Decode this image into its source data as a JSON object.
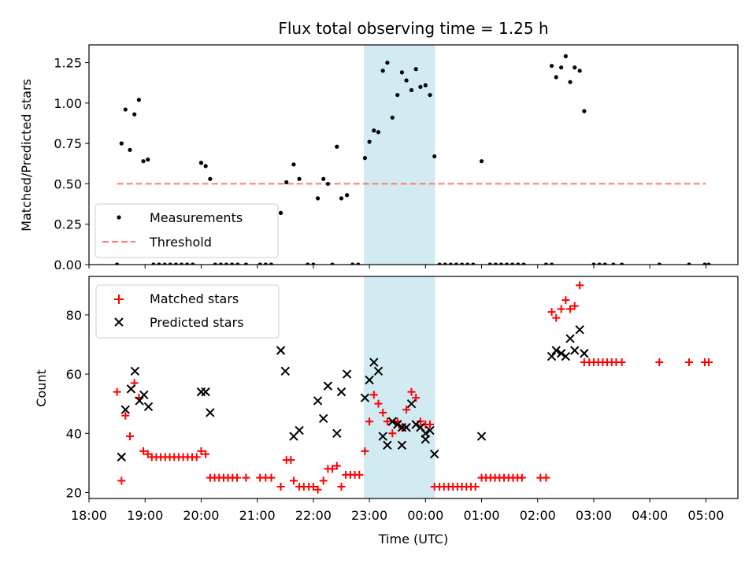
{
  "title": "Flux total observing time = 1.25 h",
  "colors": {
    "measurement": "#000000",
    "threshold": "#ff7777",
    "matched": "#ff0000",
    "predicted": "#000000",
    "span": "#add8e6"
  },
  "chart_data": [
    {
      "type": "scatter",
      "ylabel": "Matched/Predicted stars",
      "ylim": [
        0,
        1.36
      ],
      "yticks": [
        0,
        0.25,
        0.5,
        0.75,
        1.0,
        1.25
      ],
      "ytick_labels": [
        "0.00",
        "0.25",
        "0.50",
        "0.75",
        "1.00",
        "1.25"
      ],
      "legend": {
        "position": "lower-left",
        "entries": [
          "Measurements",
          "Threshold"
        ]
      },
      "threshold": {
        "value": 0.5,
        "x_start": 18.5,
        "x_end": 29.0
      },
      "shaded_span": [
        22.9,
        24.17
      ],
      "series": [
        {
          "name": "Measurements",
          "points": [
            [
              18.5,
              0.0
            ],
            [
              18.58,
              0.75
            ],
            [
              18.65,
              0.96
            ],
            [
              18.73,
              0.71
            ],
            [
              18.81,
              0.93
            ],
            [
              18.89,
              1.02
            ],
            [
              18.97,
              0.64
            ],
            [
              19.05,
              0.65
            ],
            [
              19.15,
              0.0
            ],
            [
              19.25,
              0.0
            ],
            [
              19.35,
              0.0
            ],
            [
              19.45,
              0.0
            ],
            [
              19.55,
              0.0
            ],
            [
              19.65,
              0.0
            ],
            [
              19.75,
              0.0
            ],
            [
              19.85,
              0.0
            ],
            [
              20.0,
              0.63
            ],
            [
              20.08,
              0.61
            ],
            [
              20.16,
              0.53
            ],
            [
              20.25,
              0.0
            ],
            [
              20.35,
              0.0
            ],
            [
              20.45,
              0.0
            ],
            [
              20.55,
              0.0
            ],
            [
              20.65,
              0.0
            ],
            [
              20.8,
              0.0
            ],
            [
              21.05,
              0.0
            ],
            [
              21.15,
              0.0
            ],
            [
              21.25,
              0.0
            ],
            [
              21.42,
              0.32
            ],
            [
              21.52,
              0.51
            ],
            [
              21.65,
              0.62
            ],
            [
              21.75,
              0.53
            ],
            [
              21.9,
              0.0
            ],
            [
              22.0,
              0.0
            ],
            [
              22.08,
              0.41
            ],
            [
              22.18,
              0.53
            ],
            [
              22.26,
              0.5
            ],
            [
              22.34,
              0.0
            ],
            [
              22.42,
              0.73
            ],
            [
              22.5,
              0.41
            ],
            [
              22.6,
              0.43
            ],
            [
              22.7,
              0.0
            ],
            [
              22.8,
              0.0
            ],
            [
              22.92,
              0.66
            ],
            [
              23.0,
              0.76
            ],
            [
              23.08,
              0.83
            ],
            [
              23.16,
              0.82
            ],
            [
              23.24,
              1.2
            ],
            [
              23.32,
              1.25
            ],
            [
              23.41,
              0.91
            ],
            [
              23.5,
              1.05
            ],
            [
              23.58,
              1.19
            ],
            [
              23.66,
              1.14
            ],
            [
              23.75,
              1.08
            ],
            [
              23.83,
              1.21
            ],
            [
              23.91,
              1.1
            ],
            [
              24.0,
              1.11
            ],
            [
              24.08,
              1.05
            ],
            [
              24.16,
              0.67
            ],
            [
              24.25,
              0.0
            ],
            [
              24.35,
              0.0
            ],
            [
              24.45,
              0.0
            ],
            [
              24.55,
              0.0
            ],
            [
              24.65,
              0.0
            ],
            [
              24.75,
              0.0
            ],
            [
              24.85,
              0.0
            ],
            [
              25.0,
              0.64
            ],
            [
              25.15,
              0.0
            ],
            [
              25.25,
              0.0
            ],
            [
              25.35,
              0.0
            ],
            [
              25.45,
              0.0
            ],
            [
              25.55,
              0.0
            ],
            [
              25.65,
              0.0
            ],
            [
              25.75,
              0.0
            ],
            [
              26.15,
              0.0
            ],
            [
              26.25,
              0.0
            ],
            [
              26.25,
              1.23
            ],
            [
              26.33,
              1.16
            ],
            [
              26.42,
              1.22
            ],
            [
              26.5,
              1.29
            ],
            [
              26.58,
              1.13
            ],
            [
              26.66,
              1.22
            ],
            [
              26.75,
              1.2
            ],
            [
              26.83,
              0.95
            ],
            [
              27.0,
              0.0
            ],
            [
              27.1,
              0.0
            ],
            [
              27.2,
              0.0
            ],
            [
              27.35,
              0.0
            ],
            [
              27.5,
              0.0
            ],
            [
              28.17,
              0.0
            ],
            [
              28.7,
              0.0
            ],
            [
              28.98,
              0.0
            ],
            [
              29.05,
              0.0
            ]
          ]
        }
      ]
    },
    {
      "type": "scatter",
      "xlabel": "Time (UTC)",
      "ylabel": "Count",
      "ylim": [
        18.0,
        93.0
      ],
      "yticks": [
        20,
        40,
        60,
        80
      ],
      "ytick_labels": [
        "20",
        "40",
        "60",
        "80"
      ],
      "xlim": [
        18.0,
        29.57
      ],
      "xticks": [
        18,
        19,
        20,
        21,
        22,
        23,
        24,
        25,
        26,
        27,
        28,
        29
      ],
      "xtick_labels": [
        "18:00",
        "19:00",
        "20:00",
        "21:00",
        "22:00",
        "23:00",
        "00:00",
        "01:00",
        "02:00",
        "03:00",
        "04:00",
        "05:00"
      ],
      "legend": {
        "position": "upper-left",
        "entries": [
          "Matched stars",
          "Predicted stars"
        ]
      },
      "shaded_span": [
        22.9,
        24.17
      ],
      "series": [
        {
          "name": "Matched stars",
          "marker": "plus",
          "points": [
            [
              18.5,
              54
            ],
            [
              18.58,
              24
            ],
            [
              18.65,
              46
            ],
            [
              18.73,
              39
            ],
            [
              18.81,
              57
            ],
            [
              18.89,
              52
            ],
            [
              18.97,
              34
            ],
            [
              19.05,
              33
            ],
            [
              19.12,
              32
            ],
            [
              19.2,
              32
            ],
            [
              19.28,
              32
            ],
            [
              19.36,
              32
            ],
            [
              19.44,
              32
            ],
            [
              19.52,
              32
            ],
            [
              19.6,
              32
            ],
            [
              19.68,
              32
            ],
            [
              19.76,
              32
            ],
            [
              19.84,
              32
            ],
            [
              19.92,
              32
            ],
            [
              20.0,
              34
            ],
            [
              20.08,
              33
            ],
            [
              20.16,
              25
            ],
            [
              20.24,
              25
            ],
            [
              20.32,
              25
            ],
            [
              20.4,
              25
            ],
            [
              20.48,
              25
            ],
            [
              20.56,
              25
            ],
            [
              20.64,
              25
            ],
            [
              20.8,
              25
            ],
            [
              21.05,
              25
            ],
            [
              21.15,
              25
            ],
            [
              21.25,
              25
            ],
            [
              21.42,
              22
            ],
            [
              21.52,
              31
            ],
            [
              21.6,
              31
            ],
            [
              21.65,
              24
            ],
            [
              21.75,
              22
            ],
            [
              21.83,
              22
            ],
            [
              21.92,
              22
            ],
            [
              22.0,
              22
            ],
            [
              22.08,
              21
            ],
            [
              22.18,
              24
            ],
            [
              22.26,
              28
            ],
            [
              22.34,
              28
            ],
            [
              22.42,
              29
            ],
            [
              22.5,
              22
            ],
            [
              22.58,
              26
            ],
            [
              22.66,
              26
            ],
            [
              22.74,
              26
            ],
            [
              22.82,
              26
            ],
            [
              22.92,
              34
            ],
            [
              23.0,
              44
            ],
            [
              23.08,
              53
            ],
            [
              23.16,
              50
            ],
            [
              23.24,
              47
            ],
            [
              23.32,
              44
            ],
            [
              23.41,
              40
            ],
            [
              23.5,
              44
            ],
            [
              23.58,
              42
            ],
            [
              23.66,
              48
            ],
            [
              23.75,
              54
            ],
            [
              23.83,
              52
            ],
            [
              23.91,
              44
            ],
            [
              24.0,
              43
            ],
            [
              24.08,
              43
            ],
            [
              24.16,
              22
            ],
            [
              24.25,
              22
            ],
            [
              24.33,
              22
            ],
            [
              24.41,
              22
            ],
            [
              24.49,
              22
            ],
            [
              24.57,
              22
            ],
            [
              24.65,
              22
            ],
            [
              24.73,
              22
            ],
            [
              24.81,
              22
            ],
            [
              24.89,
              22
            ],
            [
              25.0,
              25
            ],
            [
              25.08,
              25
            ],
            [
              25.16,
              25
            ],
            [
              25.24,
              25
            ],
            [
              25.32,
              25
            ],
            [
              25.4,
              25
            ],
            [
              25.48,
              25
            ],
            [
              25.56,
              25
            ],
            [
              25.64,
              25
            ],
            [
              25.72,
              25
            ],
            [
              26.05,
              25
            ],
            [
              26.15,
              25
            ],
            [
              26.25,
              81
            ],
            [
              26.33,
              79
            ],
            [
              26.42,
              82
            ],
            [
              26.5,
              85
            ],
            [
              26.58,
              82
            ],
            [
              26.66,
              83
            ],
            [
              26.75,
              90
            ],
            [
              26.83,
              64
            ],
            [
              26.92,
              64
            ],
            [
              27.0,
              64
            ],
            [
              27.08,
              64
            ],
            [
              27.16,
              64
            ],
            [
              27.24,
              64
            ],
            [
              27.32,
              64
            ],
            [
              27.4,
              64
            ],
            [
              27.5,
              64
            ],
            [
              28.17,
              64
            ],
            [
              28.7,
              64
            ],
            [
              28.98,
              64
            ],
            [
              29.05,
              64
            ]
          ]
        },
        {
          "name": "Predicted stars",
          "marker": "x",
          "points": [
            [
              18.58,
              32
            ],
            [
              18.65,
              48
            ],
            [
              18.75,
              55
            ],
            [
              18.82,
              61
            ],
            [
              18.9,
              51
            ],
            [
              18.98,
              53
            ],
            [
              19.06,
              49
            ],
            [
              20.0,
              54
            ],
            [
              20.08,
              54
            ],
            [
              20.16,
              47
            ],
            [
              21.42,
              68
            ],
            [
              21.5,
              61
            ],
            [
              21.65,
              39
            ],
            [
              21.75,
              41
            ],
            [
              22.08,
              51
            ],
            [
              22.18,
              45
            ],
            [
              22.26,
              56
            ],
            [
              22.42,
              40
            ],
            [
              22.5,
              54
            ],
            [
              22.6,
              60
            ],
            [
              22.92,
              52
            ],
            [
              23.0,
              58
            ],
            [
              23.08,
              64
            ],
            [
              23.16,
              61
            ],
            [
              23.24,
              39
            ],
            [
              23.32,
              36
            ],
            [
              23.41,
              44
            ],
            [
              23.5,
              43
            ],
            [
              23.58,
              36
            ],
            [
              23.58,
              42
            ],
            [
              23.66,
              42
            ],
            [
              23.75,
              50
            ],
            [
              23.83,
              43
            ],
            [
              23.91,
              42
            ],
            [
              24.0,
              40
            ],
            [
              24.08,
              41
            ],
            [
              24.0,
              38
            ],
            [
              24.16,
              33
            ],
            [
              25.0,
              39
            ],
            [
              26.25,
              66
            ],
            [
              26.33,
              68
            ],
            [
              26.42,
              67
            ],
            [
              26.5,
              66
            ],
            [
              26.58,
              72
            ],
            [
              26.66,
              68
            ],
            [
              26.75,
              75
            ],
            [
              26.83,
              67
            ]
          ]
        }
      ]
    }
  ]
}
